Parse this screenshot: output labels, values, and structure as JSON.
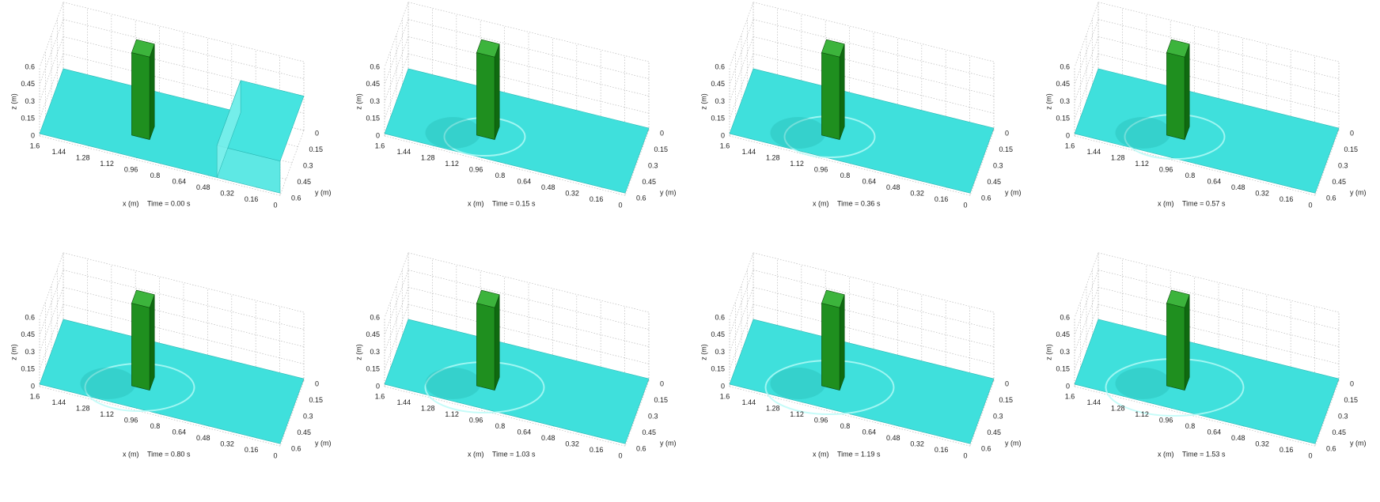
{
  "axes": {
    "x_label": "x (m)",
    "y_label": "y (m)",
    "z_label": "z (m)",
    "x_ticks": [
      1.6,
      1.44,
      1.28,
      1.12,
      0.96,
      0.8,
      0.64,
      0.48,
      0.32,
      0.16,
      0
    ],
    "y_ticks": [
      0,
      0.15,
      0.3,
      0.45,
      0.6
    ],
    "z_ticks": [
      0,
      0.15,
      0.3,
      0.45,
      0.6
    ]
  },
  "panels": [
    {
      "time": "Time = 0.00 s"
    },
    {
      "time": "Time = 0.15 s"
    },
    {
      "time": "Time = 0.36 s"
    },
    {
      "time": "Time = 0.57 s"
    },
    {
      "time": "Time = 0.80 s"
    },
    {
      "time": "Time = 1.03 s"
    },
    {
      "time": "Time = 1.19 s"
    },
    {
      "time": "Time = 1.53 s"
    }
  ]
}
